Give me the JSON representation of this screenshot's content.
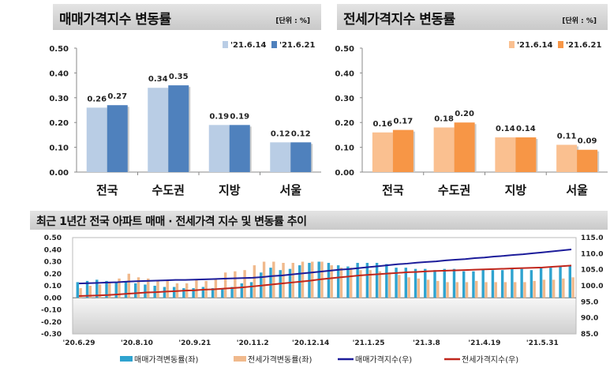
{
  "charts_meta": {
    "sale_panel": {
      "title": "매매가격지수 변동률",
      "unit": "[단위 : %]"
    },
    "jeonse_panel": {
      "title": "전세가격지수 변동률",
      "unit": "[단위 : %]"
    },
    "trend_panel": {
      "title": "최근 1년간 전국 아파트 매매 · 전세가격 지수 및 변동률 추이"
    }
  },
  "colors": {
    "sale_prev": "#b9cde5",
    "sale_curr": "#4f81bd",
    "jeonse_prev": "#fac090",
    "jeonse_curr": "#f79646",
    "sale_rate_bar": "#2fa3cf",
    "jeonse_rate_bar": "#f0b98c",
    "sale_index_line": "#1c1c9a",
    "jeonse_index_line": "#c0261c"
  },
  "chart_data": [
    {
      "type": "bar",
      "title": "매매가격지수 변동률",
      "unit": "[단위 : %]",
      "categories": [
        "전국",
        "수도권",
        "지방",
        "서울"
      ],
      "series": [
        {
          "name": "'21.6.14",
          "values": [
            0.26,
            0.34,
            0.19,
            0.12
          ]
        },
        {
          "name": "'21.6.21",
          "values": [
            0.27,
            0.35,
            0.19,
            0.12
          ]
        }
      ],
      "yticks": [
        "0.00",
        "0.10",
        "0.20",
        "0.30",
        "0.40",
        "0.50"
      ],
      "ylim": [
        0,
        0.5
      ],
      "legend": "top-right",
      "grid": false
    },
    {
      "type": "bar",
      "title": "전세가격지수 변동률",
      "unit": "[단위 : %]",
      "categories": [
        "전국",
        "수도권",
        "지방",
        "서울"
      ],
      "series": [
        {
          "name": "'21.6.14",
          "values": [
            0.16,
            0.18,
            0.14,
            0.11
          ]
        },
        {
          "name": "'21.6.21",
          "values": [
            0.17,
            0.2,
            0.14,
            0.09
          ]
        }
      ],
      "yticks": [
        "0.00",
        "0.10",
        "0.20",
        "0.30",
        "0.40",
        "0.50"
      ],
      "ylim": [
        0,
        0.5
      ],
      "legend": "top-right",
      "grid": false
    },
    {
      "type": "bar+line",
      "title": "최근 1년간 전국 아파트 매매 · 전세가격 지수 및 변동률 추이",
      "xticks": [
        "'20.6.29",
        "'20.8.10",
        "'20.9.21",
        "'20.11.2",
        "'20.12.14",
        "'21.1.25",
        "'21.3.8",
        "'21.4.19",
        "'21.5.31"
      ],
      "xtick_every_weeks": 6,
      "yticks_left": [
        "-0.30",
        "-0.20",
        "-0.10",
        "0.00",
        "0.10",
        "0.20",
        "0.30",
        "0.40",
        "0.50"
      ],
      "ylim_left": [
        -0.3,
        0.5
      ],
      "yticks_right": [
        "85.0",
        "90.0",
        "95.0",
        "100.0",
        "105.0",
        "110.0",
        "115.0"
      ],
      "ylim_right": [
        85,
        115
      ],
      "legend": "bottom",
      "grid": false,
      "series": [
        {
          "name": "매매가격변동률(좌)",
          "kind": "bar",
          "axis": "left",
          "values": [
            0.13,
            0.14,
            0.15,
            0.14,
            0.13,
            0.13,
            0.12,
            0.11,
            0.1,
            0.09,
            0.09,
            0.08,
            0.08,
            0.09,
            0.08,
            0.08,
            0.09,
            0.12,
            0.13,
            0.21,
            0.25,
            0.23,
            0.24,
            0.27,
            0.29,
            0.3,
            0.29,
            0.27,
            0.26,
            0.29,
            0.29,
            0.29,
            0.28,
            0.25,
            0.25,
            0.24,
            0.24,
            0.23,
            0.24,
            0.24,
            0.22,
            0.22,
            0.24,
            0.23,
            0.23,
            0.24,
            0.24,
            0.23,
            0.25,
            0.25,
            0.26,
            0.27
          ]
        },
        {
          "name": "전세가격변동률(좌)",
          "kind": "bar",
          "axis": "left",
          "values": [
            0.08,
            0.1,
            0.11,
            0.13,
            0.16,
            0.2,
            0.17,
            0.16,
            0.14,
            0.14,
            0.12,
            0.12,
            0.15,
            0.14,
            0.16,
            0.21,
            0.22,
            0.23,
            0.27,
            0.3,
            0.3,
            0.29,
            0.29,
            0.3,
            0.3,
            0.3,
            0.27,
            0.25,
            0.25,
            0.23,
            0.23,
            0.22,
            0.21,
            0.19,
            0.17,
            0.16,
            0.15,
            0.14,
            0.13,
            0.13,
            0.13,
            0.14,
            0.13,
            0.13,
            0.13,
            0.13,
            0.13,
            0.14,
            0.15,
            0.15,
            0.16,
            0.17
          ]
        },
        {
          "name": "매매가격지수(우)",
          "kind": "line",
          "axis": "right",
          "values": [
            100.7,
            100.8,
            100.9,
            101.0,
            101.1,
            101.3,
            101.4,
            101.5,
            101.6,
            101.7,
            101.8,
            101.8,
            101.9,
            102.0,
            102.1,
            102.2,
            102.3,
            102.4,
            102.5,
            102.7,
            103.0,
            103.2,
            103.5,
            103.8,
            104.1,
            104.4,
            104.7,
            105.0,
            105.2,
            105.5,
            105.8,
            106.1,
            106.4,
            106.7,
            106.9,
            107.2,
            107.4,
            107.6,
            107.9,
            108.1,
            108.3,
            108.6,
            108.8,
            109.1,
            109.3,
            109.6,
            109.8,
            110.1,
            110.4,
            110.7,
            111.0,
            111.3
          ]
        },
        {
          "name": "전세가격지수(우)",
          "kind": "line",
          "axis": "right",
          "values": [
            96.8,
            96.9,
            97.0,
            97.1,
            97.3,
            97.5,
            97.7,
            97.9,
            98.0,
            98.2,
            98.3,
            98.5,
            98.6,
            98.8,
            98.9,
            99.1,
            99.3,
            99.5,
            99.8,
            100.1,
            100.4,
            100.7,
            101.0,
            101.3,
            101.6,
            102.0,
            102.3,
            102.6,
            102.9,
            103.2,
            103.4,
            103.6,
            103.8,
            104.0,
            104.2,
            104.3,
            104.5,
            104.6,
            104.7,
            104.8,
            104.9,
            105.0,
            105.1,
            105.2,
            105.3,
            105.4,
            105.5,
            105.6,
            105.7,
            105.9,
            106.1,
            106.3
          ]
        }
      ]
    }
  ]
}
